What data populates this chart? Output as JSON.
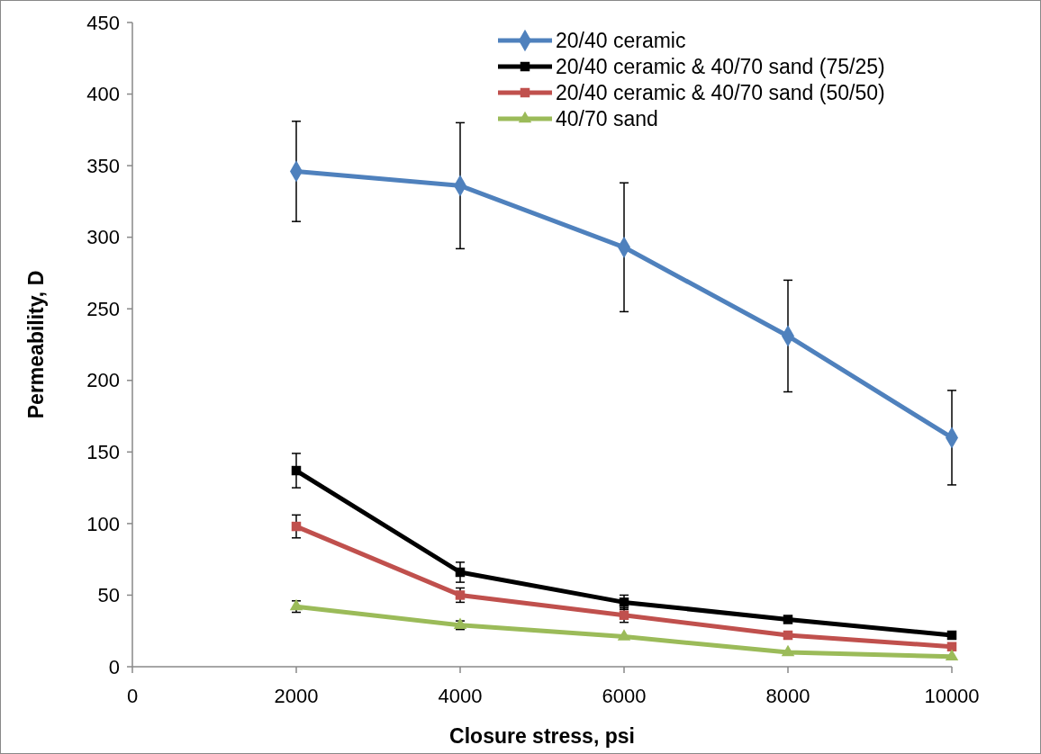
{
  "chart_data": {
    "type": "line",
    "xlabel": "Closure stress, psi",
    "ylabel": "Permeability, D",
    "x": [
      2000,
      4000,
      6000,
      8000,
      10000
    ],
    "xlim": [
      0,
      10000
    ],
    "xticks": [
      0,
      2000,
      4000,
      6000,
      8000,
      10000
    ],
    "ylim": [
      0,
      450
    ],
    "yticks": [
      0,
      50,
      100,
      150,
      200,
      250,
      300,
      350,
      400,
      450
    ],
    "grid": false,
    "legend": "top right",
    "series": [
      {
        "name": "20/40 ceramic",
        "color": "#4f81bd",
        "marker": "diamond",
        "values": [
          346,
          336,
          293,
          231,
          160
        ],
        "errors": [
          35,
          44,
          45,
          39,
          33
        ]
      },
      {
        "name": "20/40 ceramic & 40/70 sand (75/25)",
        "color": "#000000",
        "marker": "square",
        "values": [
          137,
          66,
          45,
          33,
          22
        ],
        "errors": [
          12,
          7,
          5,
          null,
          null
        ]
      },
      {
        "name": "20/40 ceramic & 40/70 sand (50/50)",
        "color": "#c0504d",
        "marker": "square",
        "values": [
          98,
          50,
          36,
          22,
          14
        ],
        "errors": [
          8,
          5,
          5,
          null,
          null
        ]
      },
      {
        "name": "40/70 sand",
        "color": "#9bbb59",
        "marker": "triangle",
        "values": [
          42,
          29,
          21,
          10,
          7
        ],
        "errors": [
          4,
          3,
          null,
          null,
          null
        ]
      }
    ]
  }
}
